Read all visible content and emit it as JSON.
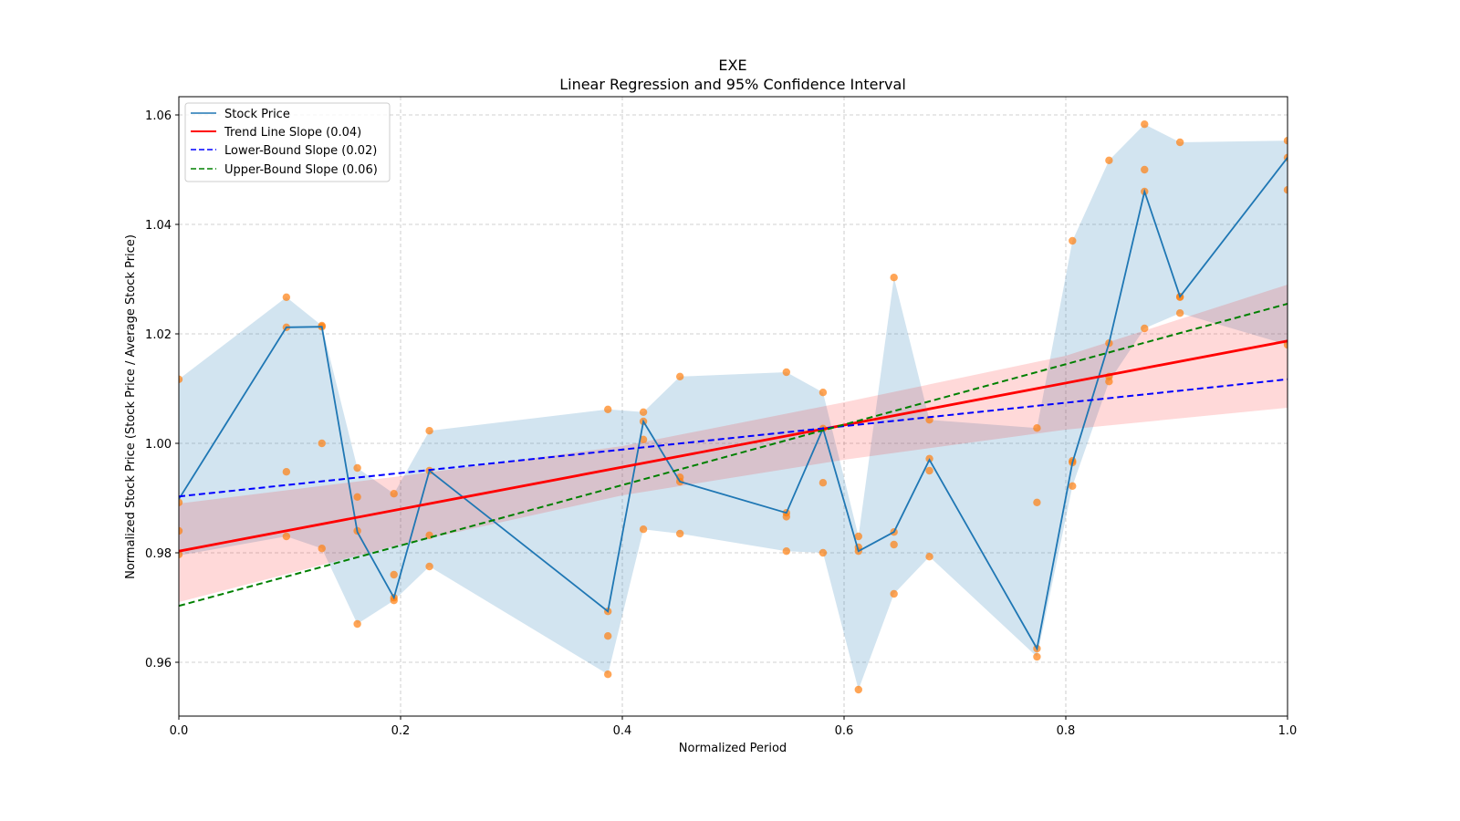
{
  "chart_data": {
    "type": "line",
    "title": "EXE",
    "subtitle": "Linear Regression and 95% Confidence Interval",
    "xlabel": "Normalized Period",
    "ylabel": "Normalized Stock Price (Stock Price / Average Stock Price)",
    "xlim": [
      0.0,
      1.0
    ],
    "ylim": [
      0.95,
      1.063
    ],
    "xticks": [
      0.0,
      0.2,
      0.4,
      0.6,
      0.8,
      1.0
    ],
    "xtick_labels": [
      "0.0",
      "0.2",
      "0.4",
      "0.6",
      "0.8",
      "1.0"
    ],
    "yticks": [
      0.96,
      0.98,
      1.0,
      1.02,
      1.04,
      1.06
    ],
    "ytick_labels": [
      "0.96",
      "0.98",
      "1.00",
      "1.02",
      "1.04",
      "1.06"
    ],
    "grid": true,
    "legend_position": "top-left",
    "legend": [
      {
        "label": "Stock Price",
        "color": "#1f77b4",
        "style": "solid"
      },
      {
        "label": "Trend Line Slope (0.04)",
        "color": "#ff0000",
        "style": "solid"
      },
      {
        "label": "Lower-Bound Slope (0.02)",
        "color": "#0000ff",
        "style": "dashed"
      },
      {
        "label": "Upper-Bound Slope (0.06)",
        "color": "#008000",
        "style": "dashed"
      }
    ],
    "colors": {
      "stock": "#1f77b4",
      "band": "#1f77b4",
      "scatter": "#ff7f0e",
      "trend": "#ff0000",
      "trend_ci": "#ff9999",
      "lower": "#0000ff",
      "upper": "#008000",
      "grid": "#b0b0b0"
    },
    "x": [
      0.0,
      0.097,
      0.129,
      0.161,
      0.194,
      0.226,
      0.387,
      0.419,
      0.452,
      0.548,
      0.581,
      0.613,
      0.645,
      0.677,
      0.774,
      0.806,
      0.839,
      0.871,
      0.903,
      1.0
    ],
    "series": [
      {
        "name": "Stock Price",
        "values": [
          0.9898,
          1.0212,
          1.0213,
          0.9838,
          0.9718,
          0.995,
          0.9693,
          1.004,
          0.993,
          0.9873,
          1.0027,
          0.9803,
          0.9838,
          0.997,
          0.9625,
          0.9965,
          1.0183,
          1.046,
          1.0268,
          1.0522
        ]
      }
    ],
    "band": {
      "name": "Stock Price Range",
      "lower": [
        0.9795,
        0.983,
        0.9808,
        0.967,
        0.9713,
        0.9775,
        0.9578,
        0.9843,
        0.9835,
        0.9803,
        0.98,
        0.955,
        0.9725,
        0.9793,
        0.961,
        0.9922,
        1.0113,
        1.021,
        1.0238,
        1.018
      ],
      "upper": [
        1.0117,
        1.0267,
        1.0215,
        0.9955,
        0.9908,
        1.0023,
        1.0062,
        1.0057,
        1.0122,
        1.013,
        1.0093,
        0.983,
        1.0303,
        1.0043,
        1.0028,
        1.037,
        1.0517,
        1.0583,
        1.055,
        1.0553
      ]
    },
    "scatter": [
      {
        "x": 0.0,
        "y": [
          1.0117,
          0.9892,
          0.984,
          0.9797
        ]
      },
      {
        "x": 0.097,
        "y": [
          1.0267,
          1.0212,
          0.9948,
          0.983
        ]
      },
      {
        "x": 0.129,
        "y": [
          1.0215,
          1.0213,
          1.0,
          0.9808
        ]
      },
      {
        "x": 0.161,
        "y": [
          0.9955,
          0.9902,
          0.984,
          0.967
        ]
      },
      {
        "x": 0.194,
        "y": [
          0.9908,
          0.976,
          0.9718,
          0.9713
        ]
      },
      {
        "x": 0.226,
        "y": [
          1.0023,
          0.995,
          0.9832,
          0.9775
        ]
      },
      {
        "x": 0.387,
        "y": [
          1.0062,
          0.9693,
          0.9648,
          0.9578
        ]
      },
      {
        "x": 0.419,
        "y": [
          1.0057,
          1.004,
          1.0007,
          0.9843
        ]
      },
      {
        "x": 0.452,
        "y": [
          1.0122,
          0.9938,
          0.993,
          0.9835
        ]
      },
      {
        "x": 0.548,
        "y": [
          1.013,
          0.9873,
          0.9866,
          0.9803
        ]
      },
      {
        "x": 0.581,
        "y": [
          1.0093,
          1.0027,
          0.9928,
          0.98
        ]
      },
      {
        "x": 0.613,
        "y": [
          0.983,
          0.981,
          0.9803,
          0.955
        ]
      },
      {
        "x": 0.645,
        "y": [
          1.0303,
          0.9838,
          0.9815,
          0.9725
        ]
      },
      {
        "x": 0.677,
        "y": [
          1.0043,
          0.9972,
          0.995,
          0.9793
        ]
      },
      {
        "x": 0.774,
        "y": [
          1.0028,
          0.9892,
          0.9625,
          0.961
        ]
      },
      {
        "x": 0.806,
        "y": [
          1.037,
          0.9968,
          0.9965,
          0.9922
        ]
      },
      {
        "x": 0.839,
        "y": [
          1.0517,
          1.0183,
          1.0122,
          1.0113
        ]
      },
      {
        "x": 0.871,
        "y": [
          1.0583,
          1.05,
          1.046,
          1.021
        ]
      },
      {
        "x": 0.903,
        "y": [
          1.055,
          1.0268,
          1.0267,
          1.0238
        ]
      },
      {
        "x": 1.0,
        "y": [
          1.0553,
          1.0522,
          1.0463,
          1.018
        ]
      }
    ],
    "trend_line": {
      "x": [
        0.0,
        1.0
      ],
      "y": [
        0.9803,
        1.0187
      ]
    },
    "trend_ci": {
      "x": [
        0.0,
        0.2,
        0.4,
        0.6,
        0.8,
        1.0
      ],
      "lower": [
        0.971,
        0.9815,
        0.9905,
        0.997,
        1.0025,
        1.0065
      ],
      "upper": [
        0.989,
        0.994,
        0.9995,
        1.0075,
        1.016,
        1.029
      ]
    },
    "lower_bound_line": {
      "x": [
        0.0,
        1.0
      ],
      "y": [
        0.9903,
        1.0117
      ]
    },
    "upper_bound_line": {
      "x": [
        0.0,
        1.0
      ],
      "y": [
        0.9703,
        1.0255
      ]
    }
  }
}
